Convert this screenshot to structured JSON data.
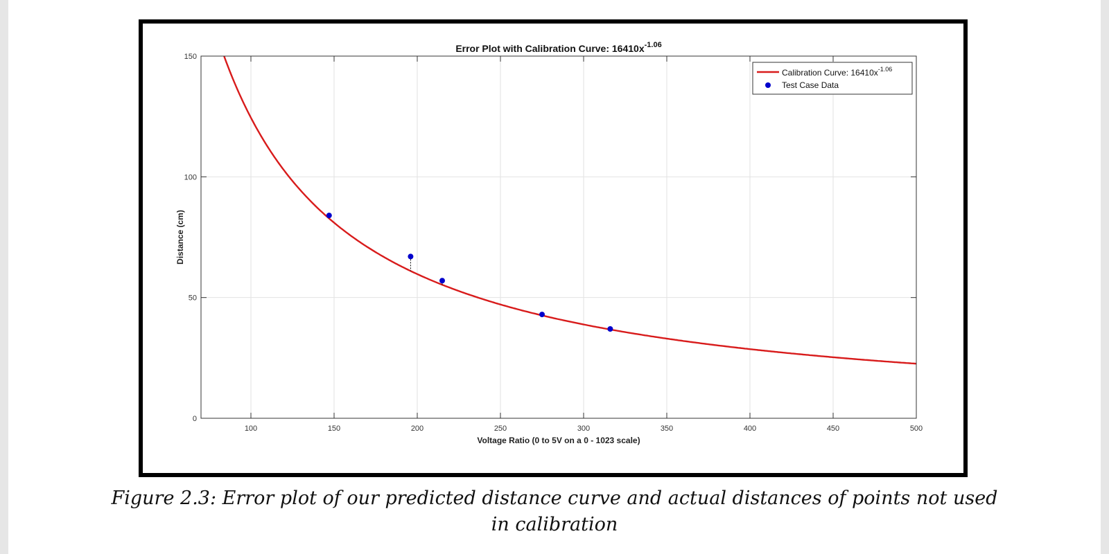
{
  "caption": {
    "line1": "Figure 2.3: Error plot of our predicted distance curve and actual distances of points not used",
    "line2": "in calibration"
  },
  "chart_data": {
    "type": "scatter",
    "title": "Error Plot with Calibration Curve: 16410x",
    "title_exponent": "-1.06",
    "xlabel": "Voltage Ratio (0 to 5V on a 0 - 1023 scale)",
    "ylabel": "Distance (cm)",
    "xlim": [
      70,
      500
    ],
    "ylim": [
      0,
      150
    ],
    "xticks": [
      100,
      150,
      200,
      250,
      300,
      350,
      400,
      450,
      500
    ],
    "yticks": [
      0,
      50,
      100,
      150
    ],
    "grid": true,
    "legend_position": "top-right",
    "curve": {
      "name": "Calibration Curve: 16410x",
      "name_exponent": "-1.06",
      "coefficient": 16410,
      "exponent": -1.06,
      "color": "#d81b1b"
    },
    "series": [
      {
        "name": "Test Case Data",
        "color": "#0000cc",
        "points": [
          {
            "x": 147,
            "y": 84
          },
          {
            "x": 196,
            "y": 67
          },
          {
            "x": 215,
            "y": 57
          },
          {
            "x": 275,
            "y": 43
          },
          {
            "x": 316,
            "y": 37
          }
        ]
      }
    ]
  }
}
